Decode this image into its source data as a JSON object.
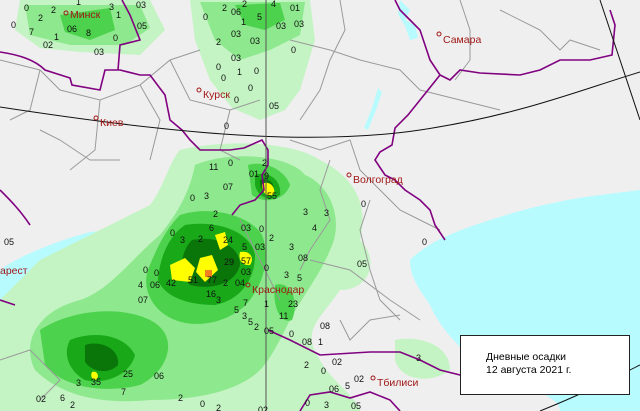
{
  "legend": {
    "title": "Дневные осадки",
    "date": "12 августа 2021 г."
  },
  "cities": [
    "Минск",
    "Самара",
    "Курск",
    "Киев",
    "Волгоград",
    "Краснодар",
    "Tбилиси",
    "арест"
  ],
  "colors": {
    "background": "#efefef",
    "water": "#b8fbff",
    "border": "#800080",
    "region_line": "#9a9a9a",
    "city": "#a01818",
    "precip_scale": [
      "#c4f4c4",
      "#8ee88e",
      "#4cd24c",
      "#18a818",
      "#0a760a",
      "#ffff00",
      "#f08020"
    ]
  },
  "values": [
    "0",
    "2",
    "2",
    "0",
    "7",
    "06",
    "8",
    "1",
    "02",
    "0",
    "03",
    "1",
    "3",
    "1",
    "05",
    "03",
    "0",
    "2",
    "06",
    "1",
    "2",
    "5",
    "4",
    "01",
    "03",
    "03",
    "03",
    "03",
    "2",
    "03",
    "0",
    "1",
    "0",
    "0",
    "0",
    "05",
    "0",
    "0",
    "0",
    "11",
    "0",
    "01",
    "9",
    "2",
    "55",
    "07",
    "0",
    "3",
    "2",
    "0",
    "3",
    "2",
    "6",
    "03",
    "0",
    "24",
    "2",
    "3",
    "5",
    "03",
    "29",
    "57",
    "0",
    "03",
    "0",
    "0",
    "4",
    "06",
    "42",
    "51",
    "77",
    "2",
    "04",
    "16",
    "3",
    "07",
    "7",
    "1",
    "3",
    "5",
    "4",
    "3",
    "3",
    "08",
    "0",
    "0",
    "05",
    "11",
    "23",
    "5",
    "3",
    "5",
    "2",
    "05",
    "0",
    "08",
    "1",
    "08",
    "2",
    "02",
    "0",
    "02",
    "06",
    "5",
    "0",
    "3",
    "05",
    "3",
    "3",
    "35",
    "25",
    "06",
    "7",
    "02",
    "6",
    "2",
    "2",
    "2",
    "02",
    "0",
    "05"
  ]
}
